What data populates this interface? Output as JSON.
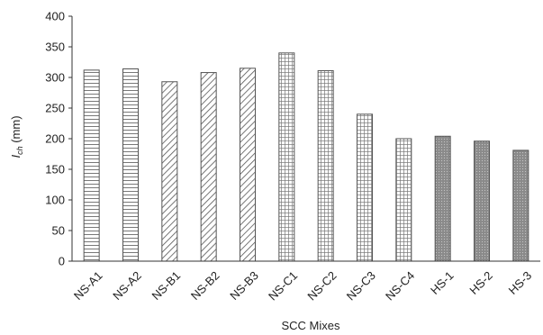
{
  "chart_data": {
    "type": "bar",
    "xlabel": "SCC Mixes",
    "ylabel_symbol": "I",
    "ylabel_subscript": "ch",
    "ylabel_unit": " (mm)",
    "ylim": [
      0,
      400
    ],
    "yticks": [
      0,
      50,
      100,
      150,
      200,
      250,
      300,
      350,
      400
    ],
    "grid": false,
    "legend": "none",
    "categories": [
      "NS-A1",
      "NS-A2",
      "NS-B1",
      "NS-B2",
      "NS-B3",
      "NS-C1",
      "NS-C2",
      "NS-C3",
      "NS-C4",
      "HS-1",
      "HS-2",
      "HS-3"
    ],
    "values": [
      312,
      314,
      293,
      308,
      315,
      340,
      311,
      240,
      200,
      204,
      196,
      181
    ],
    "patterns": [
      "horizontal-lines",
      "horizontal-lines",
      "diagonal-hatch",
      "diagonal-hatch",
      "diagonal-hatch",
      "grid",
      "grid",
      "grid",
      "grid",
      "dotted-dark",
      "dotted-dark",
      "dotted-dark"
    ]
  }
}
